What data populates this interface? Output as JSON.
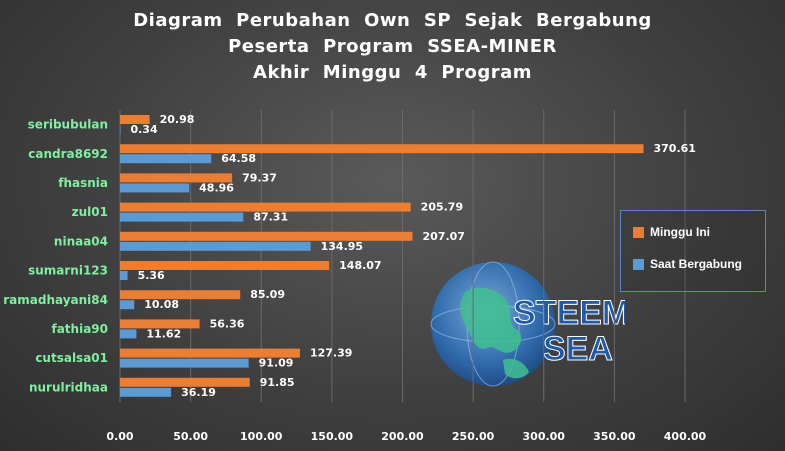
{
  "title": {
    "line1": "Diagram  Perubahan  Own  SP  Sejak  Bergabung",
    "line2": "Peserta  Program  SSEA-MINER",
    "line3": "Akhir  Minggu  4  Program"
  },
  "logo": {
    "line1": "STEEM",
    "line2": "SEA"
  },
  "colors": {
    "minggu_ini": "#ed7d31",
    "saat_bergabung": "#5b9bd5"
  },
  "chart_data": {
    "type": "bar",
    "orientation": "horizontal",
    "categories": [
      "seribubulan",
      "candra8692",
      "fhasnia",
      "zul01",
      "ninaa04",
      "sumarni123",
      "ramadhayani84",
      "fathia90",
      "cutsalsa01",
      "nurulridhaa"
    ],
    "series": [
      {
        "name": "Minggu Ini",
        "values": [
          20.98,
          370.61,
          79.37,
          205.79,
          207.07,
          148.07,
          85.09,
          56.36,
          127.39,
          91.85
        ]
      },
      {
        "name": "Saat Bergabung",
        "values": [
          0.34,
          64.58,
          48.96,
          87.31,
          134.95,
          5.36,
          10.08,
          11.62,
          91.09,
          36.19
        ]
      }
    ],
    "value_labels": [
      [
        "20.98",
        "370.61",
        "79.37",
        "205.79",
        "207.07",
        "148.07",
        "85.09",
        "56.36",
        "127.39",
        "91.85"
      ],
      [
        "0.34",
        "64.58",
        "48.96",
        "87.31",
        "134.95",
        "5.36",
        "10.08",
        "11.62",
        "91.09",
        "36.19"
      ]
    ],
    "xlim": [
      0,
      400
    ],
    "xticks": [
      0,
      50,
      100,
      150,
      200,
      250,
      300,
      350,
      400
    ],
    "xtick_labels": [
      "0.00",
      "50.00",
      "100.00",
      "150.00",
      "200.00",
      "250.00",
      "300.00",
      "350.00",
      "400.00"
    ],
    "grid": true,
    "legend_placement": "right",
    "xlabel": "",
    "ylabel": ""
  }
}
